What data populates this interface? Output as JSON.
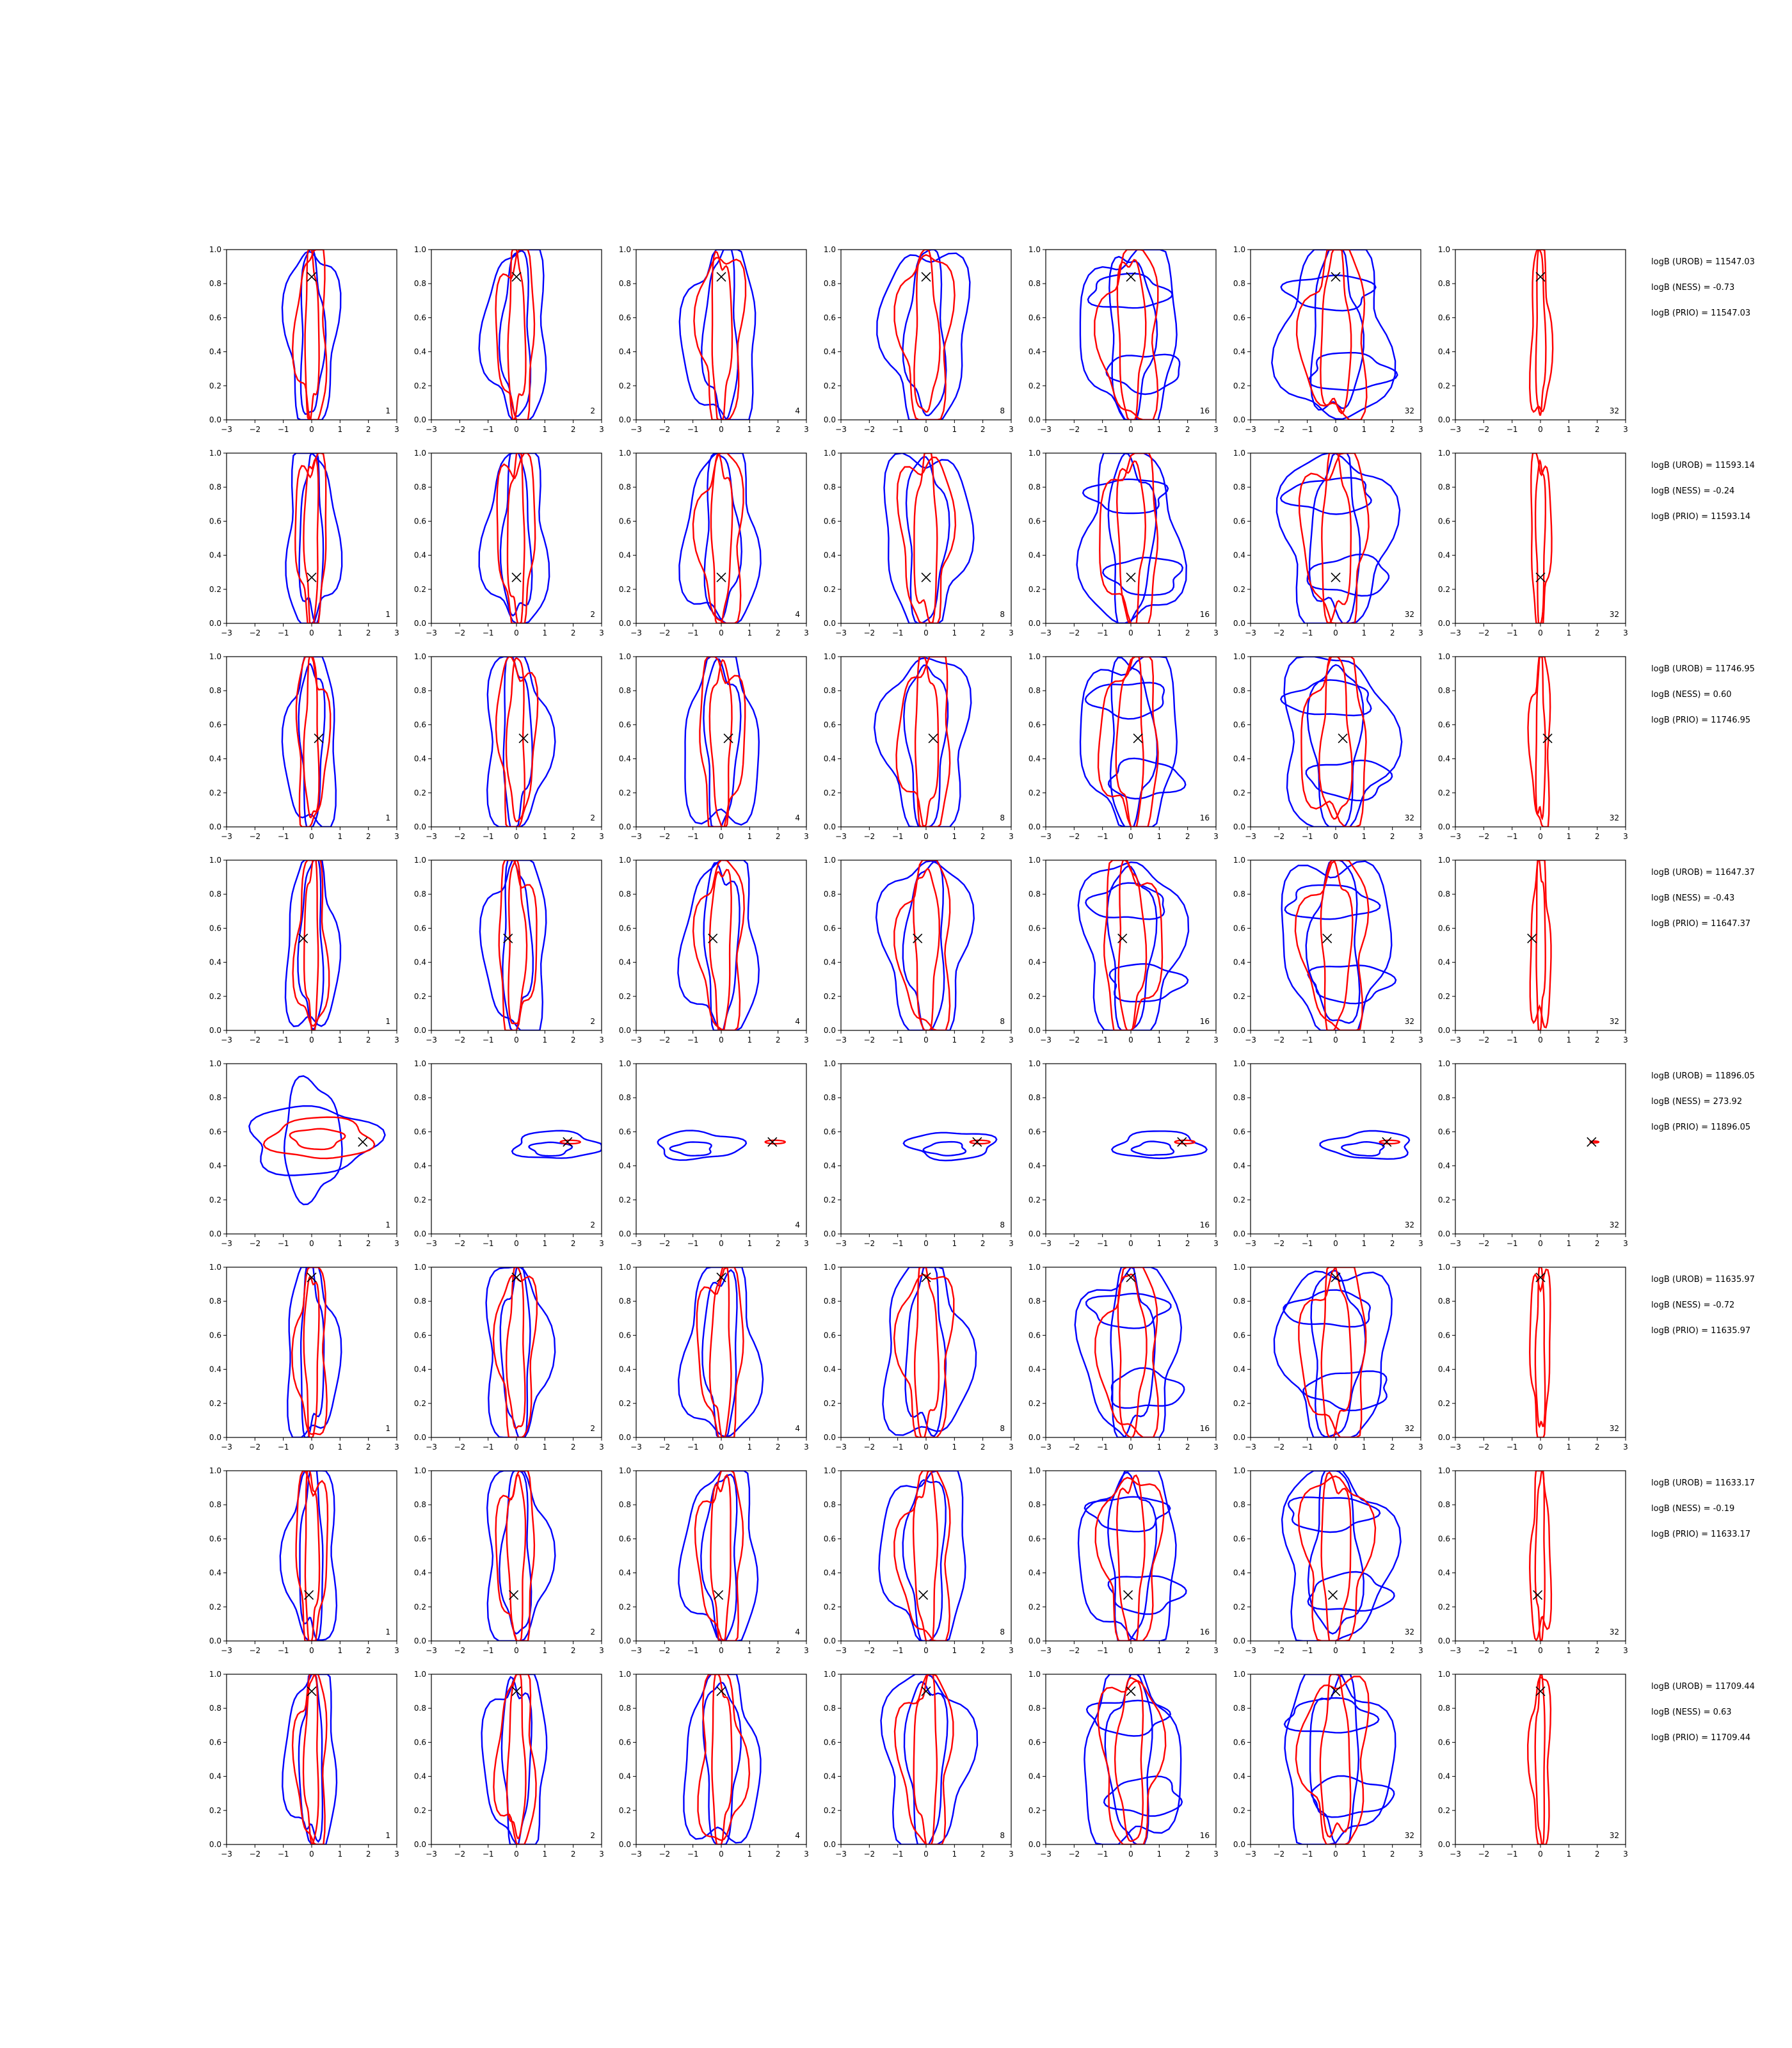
{
  "chart_data": {
    "type": "contour",
    "xlim": [
      -3,
      3
    ],
    "ylim": [
      0,
      1
    ],
    "xticks": [
      "−3",
      "−2",
      "−1",
      "0",
      "1",
      "2",
      "3"
    ],
    "yticks": [
      "0.0",
      "0.2",
      "0.4",
      "0.6",
      "0.8",
      "1.0"
    ],
    "colors": {
      "ref": "#0000ff",
      "approx": "#ff0000",
      "marker": "#000000"
    },
    "grid": false,
    "rows": [
      {
        "labels": [
          "1",
          "2",
          "4",
          "8",
          "16",
          "32",
          "32"
        ],
        "marker": [
          0.0,
          0.84
        ],
        "annotations": [
          "logB (UROB) = 11547.03",
          "logB (NESS) = -0.73",
          "logB (PRIO) = 11547.03"
        ]
      },
      {
        "labels": [
          "1",
          "2",
          "4",
          "8",
          "16",
          "32",
          "32"
        ],
        "marker": [
          0.0,
          0.27
        ],
        "annotations": [
          "logB (UROB) = 11593.14",
          "logB (NESS) = -0.24",
          "logB (PRIO) = 11593.14"
        ]
      },
      {
        "labels": [
          "1",
          "2",
          "4",
          "8",
          "16",
          "32",
          "32"
        ],
        "marker": [
          0.25,
          0.52
        ],
        "annotations": [
          "logB (UROB) = 11746.95",
          "logB (NESS) = 0.60",
          "logB (PRIO) = 11746.95"
        ]
      },
      {
        "labels": [
          "1",
          "2",
          "4",
          "8",
          "16",
          "32",
          "32"
        ],
        "marker": [
          -0.3,
          0.54
        ],
        "annotations": [
          "logB (UROB) = 11647.37",
          "logB (NESS) = -0.43",
          "logB (PRIO) = 11647.37"
        ]
      },
      {
        "labels": [
          "1",
          "2",
          "4",
          "8",
          "16",
          "32",
          "32"
        ],
        "marker": [
          1.8,
          0.54
        ],
        "annotations": [
          "logB (UROB) = 11896.05",
          "logB (NESS) = 273.92",
          "logB (PRIO) = 11896.05"
        ]
      },
      {
        "labels": [
          "1",
          "2",
          "4",
          "8",
          "16",
          "32",
          "32"
        ],
        "marker": [
          0.0,
          0.94
        ],
        "annotations": [
          "logB (UROB) = 11635.97",
          "logB (NESS) = -0.72",
          "logB (PRIO) = 11635.97"
        ]
      },
      {
        "labels": [
          "1",
          "2",
          "4",
          "8",
          "16",
          "32",
          "32"
        ],
        "marker": [
          -0.1,
          0.27
        ],
        "annotations": [
          "logB (UROB) = 11633.17",
          "logB (NESS) = -0.19",
          "logB (PRIO) = 11633.17"
        ]
      },
      {
        "labels": [
          "1",
          "2",
          "4",
          "8",
          "16",
          "32",
          "32"
        ],
        "marker": [
          0.0,
          0.9
        ],
        "annotations": [
          "logB (UROB) = 11709.44",
          "logB (NESS) = 0.63",
          "logB (PRIO) = 11709.44"
        ]
      }
    ]
  }
}
